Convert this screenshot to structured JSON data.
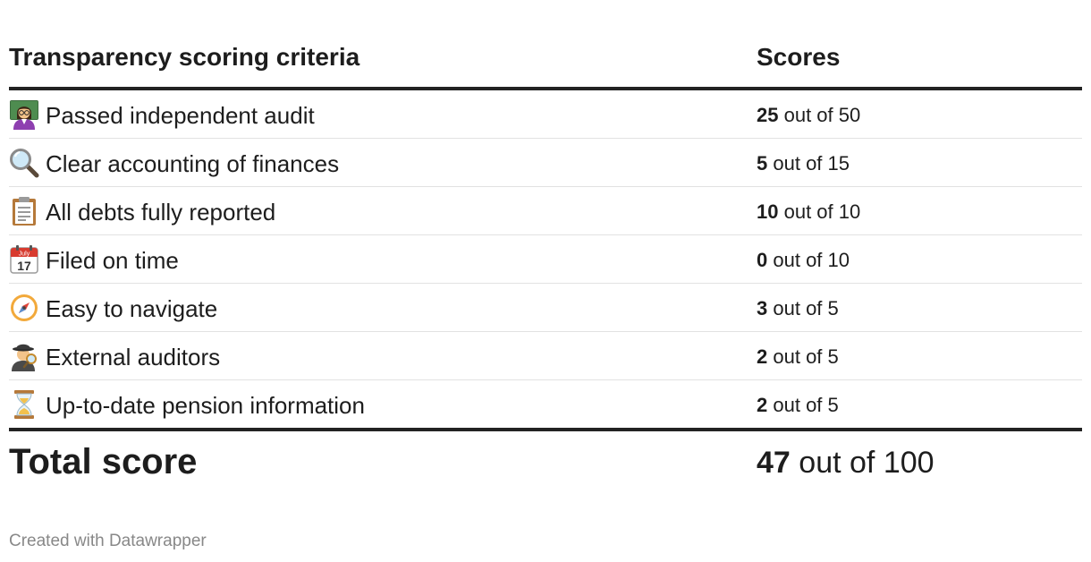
{
  "table": {
    "header_criteria": "Transparency scoring criteria",
    "header_scores": "Scores",
    "out_of_label": "out of",
    "rows": [
      {
        "icon": "teacher-icon",
        "label": "Passed independent audit",
        "score": "25",
        "max": "50"
      },
      {
        "icon": "magnifier-icon",
        "label": "Clear accounting of finances",
        "score": "5",
        "max": "15"
      },
      {
        "icon": "clipboard-icon",
        "label": "All debts fully reported",
        "score": "10",
        "max": "10"
      },
      {
        "icon": "calendar-icon",
        "label": "Filed on time",
        "score": "0",
        "max": "10",
        "calendar_month": "July",
        "calendar_day": "17"
      },
      {
        "icon": "compass-icon",
        "label": "Easy to navigate",
        "score": "3",
        "max": "5"
      },
      {
        "icon": "detective-icon",
        "label": "External auditors",
        "score": "2",
        "max": "5"
      },
      {
        "icon": "hourglass-icon",
        "label": "Up-to-date pension information",
        "score": "2",
        "max": "5"
      }
    ],
    "total_label": "Total score",
    "total_score": "47",
    "total_max": "100"
  },
  "footer": {
    "credit": "Created with Datawrapper"
  }
}
